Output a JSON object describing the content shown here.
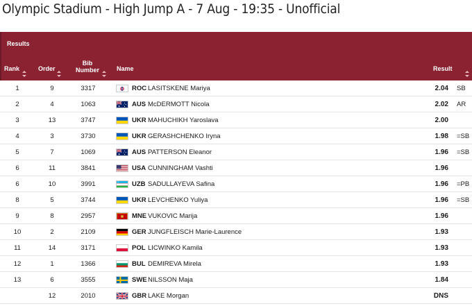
{
  "page": {
    "title": "Olympic Stadium - High Jump A - 7 Aug - 19:35 - Unofficial"
  },
  "table": {
    "section_label": "Results",
    "headers": {
      "rank": "Rank",
      "order": "Order",
      "bib": "Bib Number",
      "name": "Name",
      "result": "Result"
    },
    "rows": [
      {
        "rank": "1",
        "order": "9",
        "bib": "3317",
        "noc": "ROC",
        "name": "LASITSKENE Mariya",
        "result": "2.04",
        "record": "SB",
        "flag": "roc"
      },
      {
        "rank": "2",
        "order": "4",
        "bib": "1063",
        "noc": "AUS",
        "name": "McDERMOTT Nicola",
        "result": "2.02",
        "record": "AR",
        "flag": "aus"
      },
      {
        "rank": "3",
        "order": "13",
        "bib": "3747",
        "noc": "UKR",
        "name": "MAHUCHIKH Yaroslava",
        "result": "2.00",
        "record": "",
        "flag": "ukr"
      },
      {
        "rank": "4",
        "order": "3",
        "bib": "3730",
        "noc": "UKR",
        "name": "GERASHCHENKO Iryna",
        "result": "1.98",
        "record": "=SB",
        "flag": "ukr"
      },
      {
        "rank": "5",
        "order": "7",
        "bib": "1069",
        "noc": "AUS",
        "name": "PATTERSON Eleanor",
        "result": "1.96",
        "record": "=SB",
        "flag": "aus"
      },
      {
        "rank": "6",
        "order": "11",
        "bib": "3841",
        "noc": "USA",
        "name": "CUNNINGHAM Vashti",
        "result": "1.96",
        "record": "",
        "flag": "usa"
      },
      {
        "rank": "6",
        "order": "10",
        "bib": "3991",
        "noc": "UZB",
        "name": "SADULLAYEVA Safina",
        "result": "1.96",
        "record": "=PB",
        "flag": "uzb"
      },
      {
        "rank": "8",
        "order": "5",
        "bib": "3744",
        "noc": "UKR",
        "name": "LEVCHENKO Yuliya",
        "result": "1.96",
        "record": "=SB",
        "flag": "ukr"
      },
      {
        "rank": "9",
        "order": "8",
        "bib": "2957",
        "noc": "MNE",
        "name": "VUKOVIC Marija",
        "result": "1.96",
        "record": "",
        "flag": "mne"
      },
      {
        "rank": "10",
        "order": "2",
        "bib": "2109",
        "noc": "GER",
        "name": "JUNGFLEISCH Marie-Laurence",
        "result": "1.93",
        "record": "",
        "flag": "ger"
      },
      {
        "rank": "11",
        "order": "14",
        "bib": "3171",
        "noc": "POL",
        "name": "LICWINKO Kamila",
        "result": "1.93",
        "record": "",
        "flag": "pol"
      },
      {
        "rank": "12",
        "order": "1",
        "bib": "1366",
        "noc": "BUL",
        "name": "DEMIREVA Mirela",
        "result": "1.93",
        "record": "",
        "flag": "bul"
      },
      {
        "rank": "13",
        "order": "6",
        "bib": "3555",
        "noc": "SWE",
        "name": "NILSSON Maja",
        "result": "1.84",
        "record": "",
        "flag": "swe"
      },
      {
        "rank": "",
        "order": "12",
        "bib": "2010",
        "noc": "GBR",
        "name": "LAKE Morgan",
        "result": "DNS",
        "record": "",
        "flag": "gbr"
      }
    ]
  },
  "colors": {
    "header_bg": "#8a2232",
    "row_border": "#e3e3e3"
  }
}
